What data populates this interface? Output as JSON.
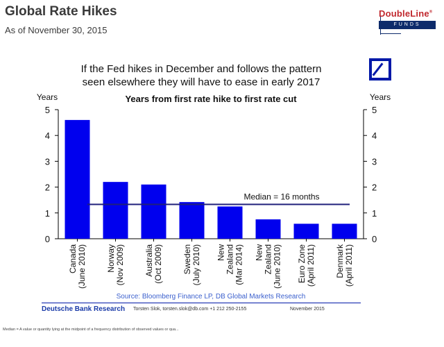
{
  "header": {
    "title": "Global Rate Hikes",
    "subtitle": "As of November 30, 2015"
  },
  "logo": {
    "brand": "DoubleLine",
    "registered": "®",
    "funds": "FUNDS",
    "icon": "deutsche-bank-logo"
  },
  "headline": {
    "line1": "If the Fed hikes in December and follows the pattern",
    "line2": "seen elsewhere they will have to ease in early 2017"
  },
  "chart_data": {
    "type": "bar",
    "title": "Years from first rate hike to first rate cut",
    "ylabel_left": "Years",
    "ylabel_right": "Years",
    "ylim": [
      0,
      5
    ],
    "yticks": [
      0,
      1,
      2,
      3,
      4,
      5
    ],
    "categories": [
      [
        "Canada",
        "(June 2010)"
      ],
      [
        "Norway",
        "(Nov 2009)"
      ],
      [
        "Australia",
        "(Oct 2009)"
      ],
      [
        "Sweden",
        "(July 2010)"
      ],
      [
        "New",
        "Zealand",
        "(Mar 2014)"
      ],
      [
        "New",
        "Zealand",
        "(June 2010)"
      ],
      [
        "Euro Zone",
        "(April 2011)"
      ],
      [
        "Denmark",
        "(April 2011)"
      ]
    ],
    "values": [
      4.6,
      2.2,
      2.1,
      1.42,
      1.25,
      0.75,
      0.58,
      0.58
    ],
    "bar_color": "#0000ee",
    "median": {
      "value": 1.33,
      "label": "Median = 16 months",
      "color": "#1f1f7a"
    },
    "source": "Source: Bloomberg Finance LP, DB Global Markets Research",
    "grid": false
  },
  "footer": {
    "org": "Deutsche Bank Research",
    "contact": "Torsten Slok, torsten.slok@db.com  +1 212 250-2155",
    "date": "November 2015",
    "note": "Median = A value or quantity lying at the midpoint of a frequency distribution of observed values or qua..."
  }
}
